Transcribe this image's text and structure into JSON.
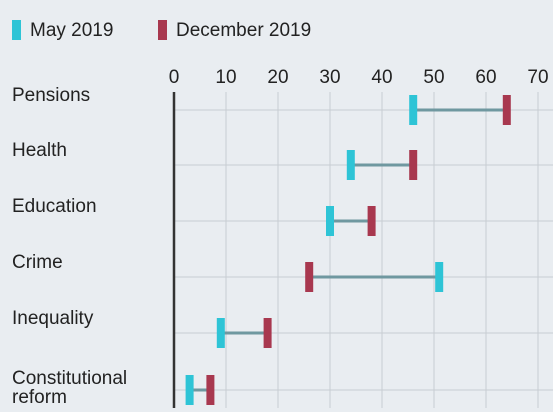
{
  "chart_data": {
    "type": "dumbbell",
    "categories": [
      "Pensions",
      "Health",
      "Education",
      "Crime",
      "Inequality",
      "Constitutional reform"
    ],
    "series": [
      {
        "name": "May 2019",
        "color": "#2ec4d6",
        "values": [
          46,
          34,
          30,
          51,
          9,
          3
        ]
      },
      {
        "name": "December 2019",
        "color": "#a8384f",
        "values": [
          64,
          46,
          38,
          26,
          18,
          7
        ]
      }
    ],
    "connector_color": "#6f98a0",
    "xlim": [
      0,
      70
    ],
    "xticks": [
      0,
      10,
      20,
      30,
      40,
      50,
      60,
      70
    ],
    "grid": true
  }
}
